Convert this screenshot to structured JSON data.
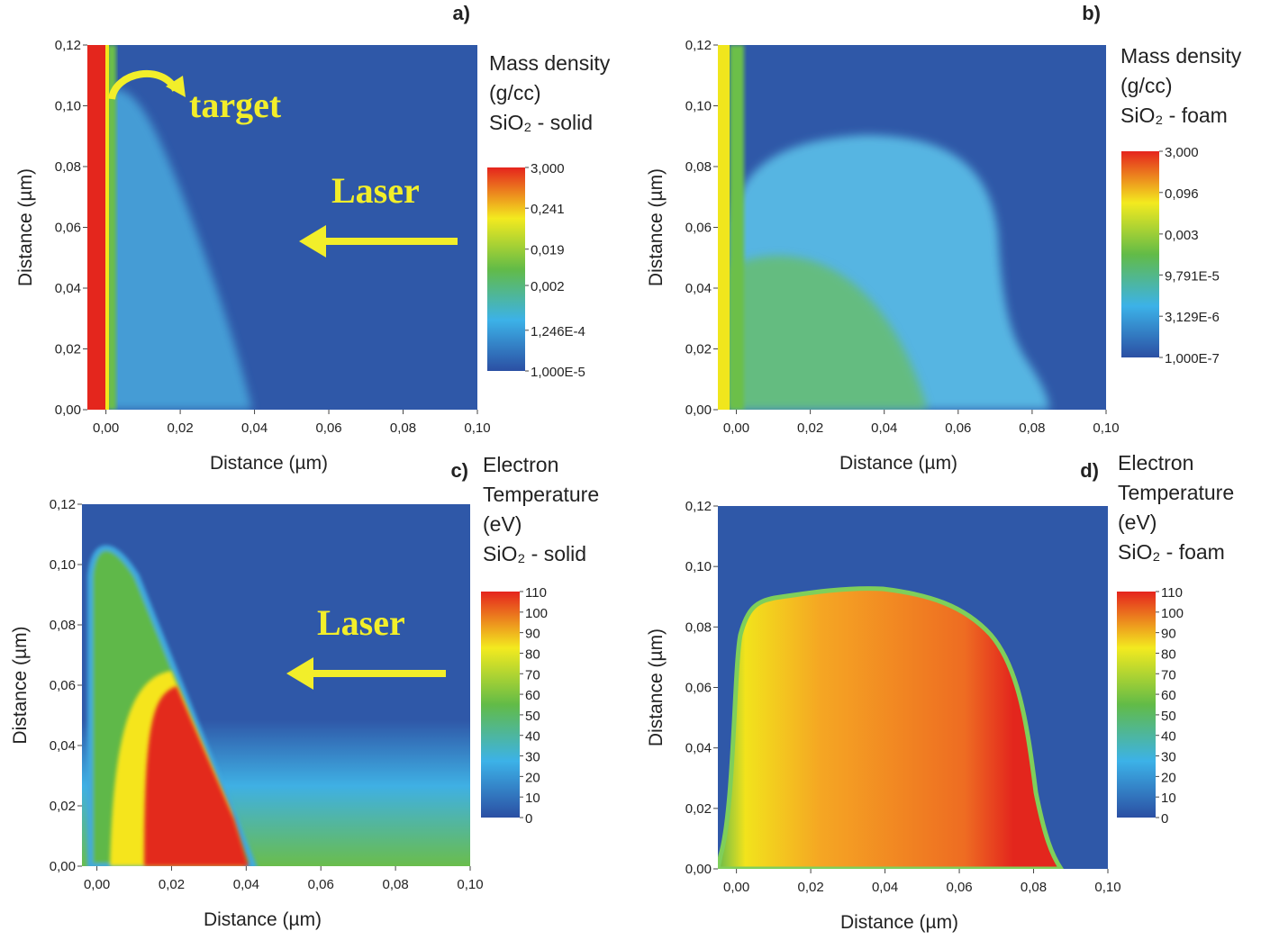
{
  "chart_data": [
    {
      "type": "heatmap",
      "panel": "a)",
      "title": [
        "Mass density",
        "(g/cc)",
        "SiO₂ - solid"
      ],
      "xlabel": "Distance (µm)",
      "ylabel": "Distance (µm)",
      "xlim": [
        -0.005,
        0.1
      ],
      "ylim": [
        0,
        0.12
      ],
      "xticks": [
        {
          "value": 0,
          "label": "0,00"
        },
        {
          "value": 0.02,
          "label": "0,02"
        },
        {
          "value": 0.04,
          "label": "0,04"
        },
        {
          "value": 0.06,
          "label": "0,06"
        },
        {
          "value": 0.08,
          "label": "0,08"
        },
        {
          "value": 0.1,
          "label": "0,10"
        }
      ],
      "yticks": [
        {
          "value": 0,
          "label": "0,00"
        },
        {
          "value": 0.02,
          "label": "0,02"
        },
        {
          "value": 0.04,
          "label": "0,04"
        },
        {
          "value": 0.06,
          "label": "0,06"
        },
        {
          "value": 0.08,
          "label": "0,08"
        },
        {
          "value": 0.1,
          "label": "0,10"
        },
        {
          "value": 0.12,
          "label": "0,12"
        }
      ],
      "colorbar_scale": "log",
      "clim": [
        1e-05,
        3
      ],
      "cticks": [
        {
          "value": 3,
          "label": "3,000"
        },
        {
          "value": 0.241,
          "label": "0,241"
        },
        {
          "value": 0.019,
          "label": "0,019"
        },
        {
          "value": 0.002,
          "label": "0,002"
        },
        {
          "value": 0.0001246,
          "label": "1,246E-4"
        },
        {
          "value": 1e-05,
          "label": "1,000E-5"
        }
      ],
      "colormap": [
        "#2b4fa3",
        "#3cb2e8",
        "#62bb47",
        "#f3ea1f",
        "#e5241d"
      ],
      "annotations": [
        "target",
        "Laser"
      ]
    },
    {
      "type": "heatmap",
      "panel": "b)",
      "title": [
        "Mass density",
        "(g/cc)",
        "SiO₂ - foam"
      ],
      "xlabel": "Distance (µm)",
      "ylabel": "Distance (µm)",
      "xlim": [
        -0.005,
        0.1
      ],
      "ylim": [
        0,
        0.12
      ],
      "xticks": [
        {
          "value": 0,
          "label": "0,00"
        },
        {
          "value": 0.02,
          "label": "0,02"
        },
        {
          "value": 0.04,
          "label": "0,04"
        },
        {
          "value": 0.06,
          "label": "0,06"
        },
        {
          "value": 0.08,
          "label": "0,08"
        },
        {
          "value": 0.1,
          "label": "0,10"
        }
      ],
      "yticks": [
        {
          "value": 0,
          "label": "0,00"
        },
        {
          "value": 0.02,
          "label": "0,02"
        },
        {
          "value": 0.04,
          "label": "0,04"
        },
        {
          "value": 0.06,
          "label": "0,06"
        },
        {
          "value": 0.08,
          "label": "0,08"
        },
        {
          "value": 0.1,
          "label": "0,10"
        },
        {
          "value": 0.12,
          "label": "0,12"
        }
      ],
      "colorbar_scale": "log",
      "clim": [
        1e-07,
        3
      ],
      "cticks": [
        {
          "value": 3,
          "label": "3,000"
        },
        {
          "value": 0.096,
          "label": "0,096"
        },
        {
          "value": 0.003,
          "label": "0,003"
        },
        {
          "value": 9.791e-05,
          "label": "9,791E-5"
        },
        {
          "value": 3.129e-06,
          "label": "3,129E-6"
        },
        {
          "value": 1e-07,
          "label": "1,000E-7"
        }
      ],
      "colormap": [
        "#2b4fa3",
        "#3cb2e8",
        "#62bb47",
        "#f3ea1f",
        "#e5241d"
      ],
      "annotations": []
    },
    {
      "type": "heatmap",
      "panel": "c)",
      "title": [
        "Electron",
        "Temperature",
        "(eV)",
        "SiO₂ - solid"
      ],
      "xlabel": "Distance (µm)",
      "ylabel": "Distance (µm)",
      "xlim": [
        -0.004,
        0.1
      ],
      "ylim": [
        0,
        0.12
      ],
      "xticks": [
        {
          "value": 0,
          "label": "0,00"
        },
        {
          "value": 0.02,
          "label": "0,02"
        },
        {
          "value": 0.04,
          "label": "0,04"
        },
        {
          "value": 0.06,
          "label": "0,06"
        },
        {
          "value": 0.08,
          "label": "0,08"
        },
        {
          "value": 0.1,
          "label": "0,10"
        }
      ],
      "yticks": [
        {
          "value": 0,
          "label": "0,00"
        },
        {
          "value": 0.02,
          "label": "0,02"
        },
        {
          "value": 0.04,
          "label": "0,04"
        },
        {
          "value": 0.06,
          "label": "0,06"
        },
        {
          "value": 0.08,
          "label": "0,08"
        },
        {
          "value": 0.1,
          "label": "0,10"
        },
        {
          "value": 0.12,
          "label": "0,12"
        }
      ],
      "colorbar_scale": "linear",
      "clim": [
        0,
        110
      ],
      "cticks": [
        110,
        100,
        90,
        80,
        70,
        60,
        50,
        40,
        30,
        20,
        10,
        0
      ],
      "colormap": [
        "#2b4fa3",
        "#3cb2e8",
        "#62bb47",
        "#f3ea1f",
        "#e5241d"
      ],
      "annotations": [
        "Laser"
      ]
    },
    {
      "type": "heatmap",
      "panel": "d)",
      "title": [
        "Electron",
        "Temperature",
        "(eV)",
        "SiO₂ - foam"
      ],
      "xlabel": "Distance (µm)",
      "ylabel": "Distance (µm)",
      "xlim": [
        -0.005,
        0.1
      ],
      "ylim": [
        0,
        0.12
      ],
      "xticks": [
        {
          "value": 0,
          "label": "0,00"
        },
        {
          "value": 0.02,
          "label": "0,02"
        },
        {
          "value": 0.04,
          "label": "0,04"
        },
        {
          "value": 0.06,
          "label": "0,06"
        },
        {
          "value": 0.08,
          "label": "0,08"
        },
        {
          "value": 0.1,
          "label": "0,10"
        }
      ],
      "yticks": [
        {
          "value": 0,
          "label": "0,00"
        },
        {
          "value": 0.02,
          "label": "0,02"
        },
        {
          "value": 0.04,
          "label": "0,04"
        },
        {
          "value": 0.06,
          "label": "0,06"
        },
        {
          "value": 0.08,
          "label": "0,08"
        },
        {
          "value": 0.1,
          "label": "0,10"
        },
        {
          "value": 0.12,
          "label": "0,12"
        }
      ],
      "colorbar_scale": "linear",
      "clim": [
        0,
        110
      ],
      "cticks": [
        110,
        100,
        90,
        80,
        70,
        60,
        50,
        40,
        30,
        20,
        10,
        0
      ],
      "colormap": [
        "#2b4fa3",
        "#3cb2e8",
        "#62bb47",
        "#f3ea1f",
        "#e5241d"
      ],
      "annotations": []
    }
  ]
}
